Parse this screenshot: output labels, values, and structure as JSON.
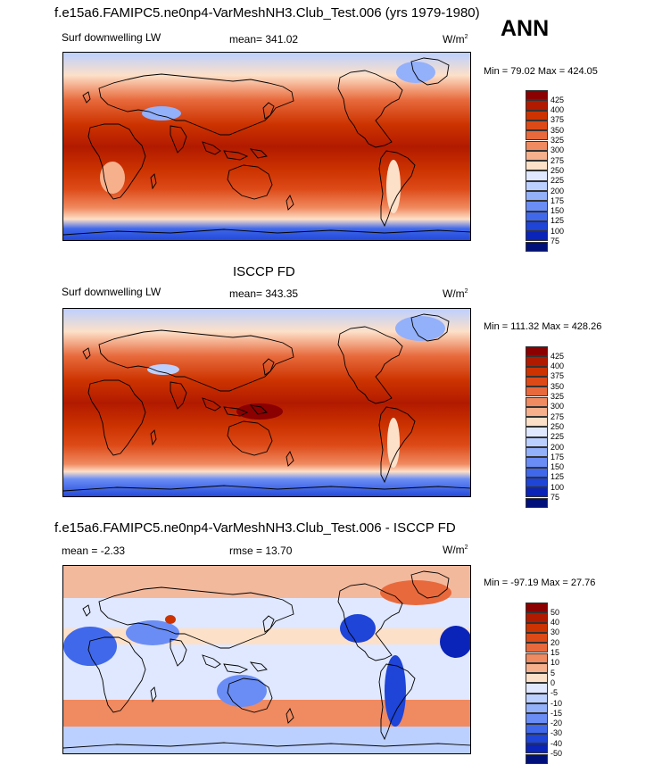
{
  "header": {
    "title": "f.e15a6.FAMIPC5.ne0np4-VarMeshNH3.Club_Test.006 (yrs 1979-1980)",
    "season": "ANN"
  },
  "panels": [
    {
      "id": "model",
      "title": "",
      "variable": "Surf downwelling LW",
      "stat_label": "mean=",
      "stat_value": "341.02",
      "units_base": "W/m",
      "units_exp": "2",
      "min_label": "Min =",
      "min_value": "79.02",
      "max_label": "Max =",
      "max_value": "424.05"
    },
    {
      "id": "obs",
      "title": "ISCCP FD",
      "variable": "Surf downwelling LW",
      "stat_label": "mean=",
      "stat_value": "343.35",
      "units_base": "W/m",
      "units_exp": "2",
      "min_label": "Min =",
      "min_value": "111.32",
      "max_label": "Max =",
      "max_value": "428.26"
    },
    {
      "id": "diff",
      "title": "f.e15a6.FAMIPC5.ne0np4-VarMeshNH3.Club_Test.006 - ISCCP FD",
      "mean_label": "mean =",
      "mean_value": "-2.33",
      "rmse_label": "rmse =",
      "rmse_value": "13.70",
      "units_base": "W/m",
      "units_exp": "2",
      "min_label": "Min =",
      "min_value": "-97.19",
      "max_label": "Max =",
      "max_value": "27.76"
    }
  ],
  "colorbars": {
    "abs": {
      "labels": [
        "425",
        "400",
        "375",
        "350",
        "325",
        "300",
        "275",
        "250",
        "225",
        "200",
        "175",
        "150",
        "125",
        "100",
        "75"
      ],
      "colors": [
        "#8b0000",
        "#b21a00",
        "#cc3300",
        "#dd4a18",
        "#e86a3c",
        "#f08a60",
        "#f7b08c",
        "#fde0c8",
        "#dfe8ff",
        "#bcd0ff",
        "#93b0fb",
        "#6a8df5",
        "#4068ea",
        "#1e44d8",
        "#0a23b8",
        "#00107a"
      ]
    },
    "diff": {
      "labels": [
        "50",
        "40",
        "30",
        "20",
        "15",
        "10",
        "5",
        "0",
        "-5",
        "-10",
        "-15",
        "-20",
        "-30",
        "-40",
        "-50"
      ],
      "colors": [
        "#8b0000",
        "#b21a00",
        "#cc3300",
        "#dd4a18",
        "#e86a3c",
        "#f08a60",
        "#f7b08c",
        "#fde0c8",
        "#dfe8ff",
        "#bcd0ff",
        "#93b0fb",
        "#6a8df5",
        "#4068ea",
        "#1e44d8",
        "#0a23b8",
        "#00107a"
      ]
    }
  },
  "colors": {
    "land_line": "#000000"
  }
}
